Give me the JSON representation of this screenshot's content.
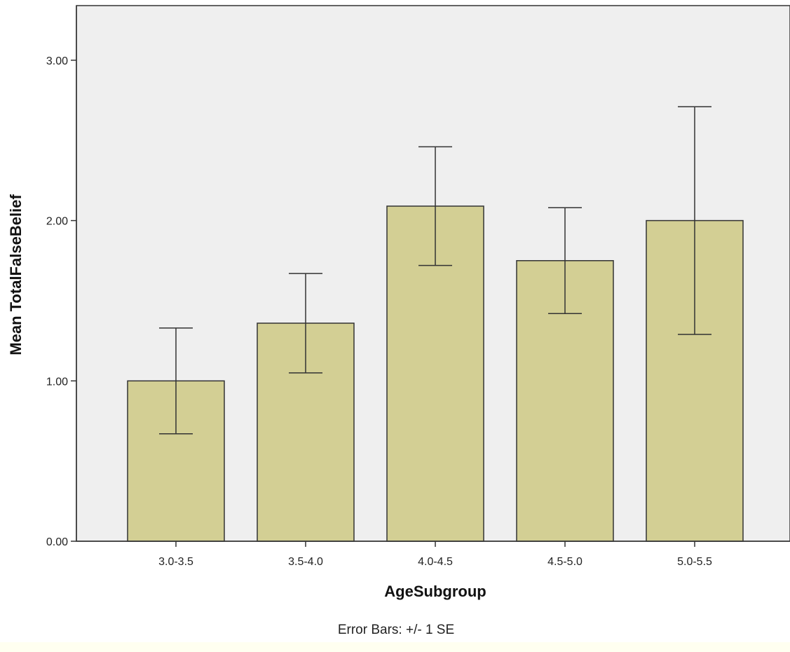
{
  "chart_data": {
    "type": "bar",
    "categories": [
      "3.0-3.5",
      "3.5-4.0",
      "4.0-4.5",
      "4.5-5.0",
      "5.0-5.5"
    ],
    "values": [
      1.0,
      1.36,
      2.09,
      1.75,
      2.0
    ],
    "error_low": [
      0.67,
      1.05,
      1.72,
      1.42,
      1.29
    ],
    "error_high": [
      1.33,
      1.67,
      2.46,
      2.08,
      2.71
    ],
    "xlabel": "AgeSubgroup",
    "ylabel": "Mean TotalFalseBelief",
    "yticks": [
      "0.00",
      "1.00",
      "2.00",
      "3.00"
    ],
    "ylim": [
      0,
      3.33
    ],
    "grid": false,
    "note": "Error Bars: +/- 1 SE",
    "colors": {
      "plot_background": "#efefef",
      "bar_fill": "#d3cf94",
      "bar_stroke": "#333333",
      "axis": "#333333",
      "bottom_strip": "#fffff0"
    }
  }
}
